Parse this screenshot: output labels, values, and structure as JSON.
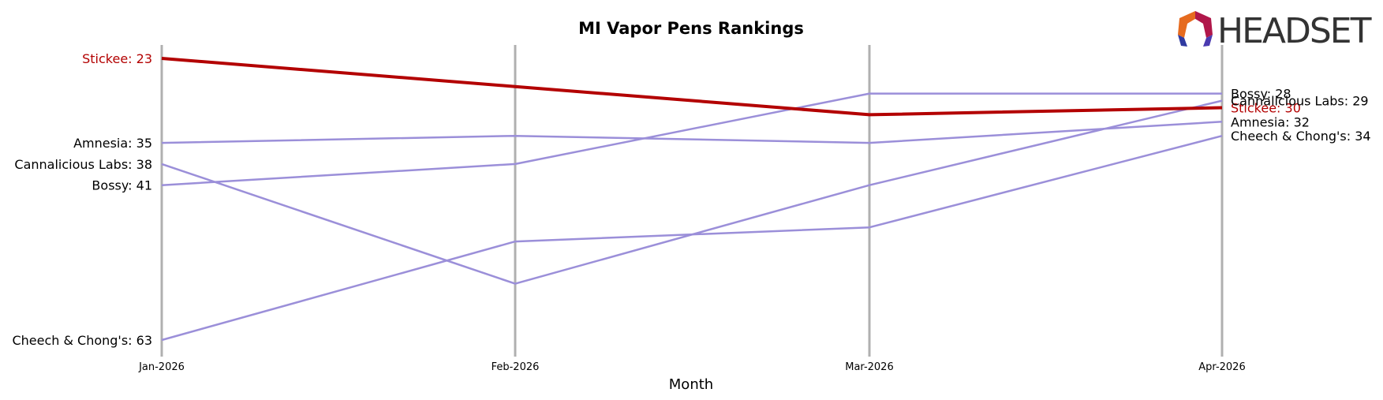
{
  "chart_data": {
    "type": "line",
    "title": "MI Vapor Pens Rankings",
    "xlabel": "Month",
    "ylabel": "",
    "categories": [
      "Jan-2026",
      "Feb-2026",
      "Mar-2026",
      "Apr-2026"
    ],
    "y_inverted": true,
    "ylim": [
      19,
      64
    ],
    "grid": "vertical lines at each month",
    "series": [
      {
        "name": "Stickee",
        "values": [
          23,
          27,
          31,
          30
        ],
        "color": "#b30000",
        "highlight": true,
        "start_label": "Stickee: 23",
        "end_label": "Stickee: 30"
      },
      {
        "name": "Amnesia",
        "values": [
          35,
          34,
          35,
          32
        ],
        "color": "#9b8fd9",
        "start_label": "Amnesia: 35",
        "end_label": "Amnesia: 32"
      },
      {
        "name": "Cannalicious Labs",
        "values": [
          38,
          55,
          41,
          29
        ],
        "color": "#9b8fd9",
        "start_label": "Cannalicious Labs: 38",
        "end_label": "Cannalicious Labs: 29"
      },
      {
        "name": "Bossy",
        "values": [
          41,
          38,
          28,
          28
        ],
        "color": "#9b8fd9",
        "start_label": "Bossy: 41",
        "end_label": "Bossy: 28"
      },
      {
        "name": "Cheech & Chong's",
        "values": [
          63,
          49,
          47,
          34
        ],
        "color": "#9b8fd9",
        "start_label": "Cheech & Chong's: 63",
        "end_label": "Cheech & Chong's: 34"
      }
    ]
  },
  "logo": {
    "text": "HEADSET"
  },
  "colors": {
    "gridline": "#b0b0b0",
    "highlight": "#b30000",
    "other": "#9b8fd9",
    "logo_text": "#333333"
  }
}
